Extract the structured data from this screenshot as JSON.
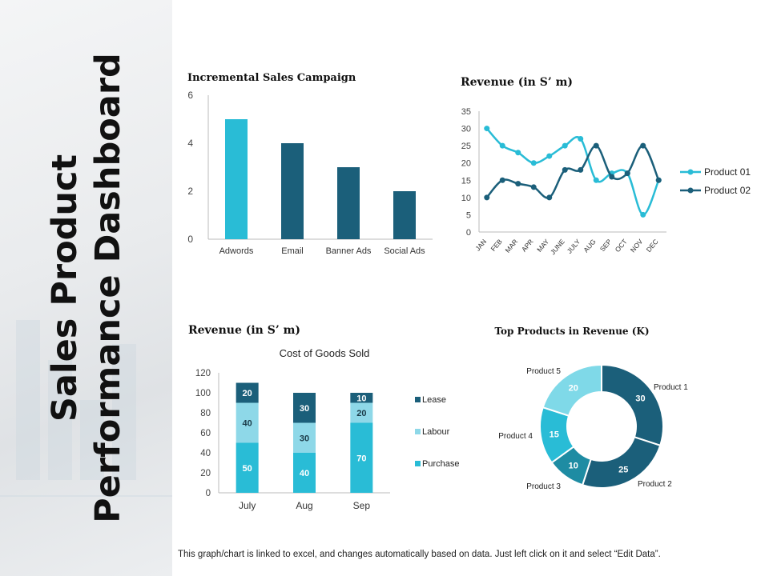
{
  "sidebar": {
    "title_line1": "Sales Product",
    "title_line2": "Performance Dashboard"
  },
  "footer": {
    "note": "This graph/chart is linked to excel, and changes automatically based on data. Just left click on it and select “Edit Data”."
  },
  "colors": {
    "light": "#29bcd6",
    "dark": "#1b5f7a",
    "pale": "#8ed8e8",
    "mid": "#1e8ca3",
    "palest": "#7fd9e8"
  },
  "chart_data": [
    {
      "id": "incremental",
      "type": "bar",
      "title": "Incremental Sales Campaign",
      "categories": [
        "Adwords",
        "Email",
        "Banner Ads",
        "Social Ads"
      ],
      "values": [
        5,
        4,
        3,
        2
      ],
      "ylim": [
        0,
        6
      ],
      "yticks": [
        0,
        2,
        4,
        6
      ],
      "xlabel": "",
      "ylabel": ""
    },
    {
      "id": "revenue_line",
      "type": "line",
      "title": "Revenue (in S’ m)",
      "categories": [
        "JAN",
        "FEB",
        "MAR",
        "APR",
        "MAY",
        "JUNE",
        "JULY",
        "AUG",
        "SEP",
        "OCT",
        "NOV",
        "DEC"
      ],
      "series": [
        {
          "name": "Product 01",
          "values": [
            30,
            25,
            23,
            20,
            22,
            25,
            27,
            15,
            17,
            17,
            5,
            15
          ]
        },
        {
          "name": "Product 02",
          "values": [
            10,
            15,
            14,
            13,
            10,
            18,
            18,
            25,
            16,
            17,
            25,
            15
          ]
        }
      ],
      "ylim": [
        0,
        35
      ],
      "yticks": [
        0,
        5,
        10,
        15,
        20,
        25,
        30,
        35
      ],
      "legend": "right"
    },
    {
      "id": "cogs",
      "type": "bar",
      "stacked": true,
      "title": "Revenue (in S’ m)",
      "subtitle": "Cost of Goods Sold",
      "categories": [
        "July",
        "Aug",
        "Sep"
      ],
      "series": [
        {
          "name": "Purchase",
          "values": [
            50,
            40,
            70
          ]
        },
        {
          "name": "Labour",
          "values": [
            40,
            30,
            20
          ]
        },
        {
          "name": "Lease",
          "values": [
            20,
            30,
            10
          ]
        }
      ],
      "legend_order": [
        "Lease",
        "Labour",
        "Purchase"
      ],
      "ylim": [
        0,
        120
      ],
      "yticks": [
        0,
        20,
        40,
        60,
        80,
        100,
        120
      ],
      "legend": "right"
    },
    {
      "id": "top_products",
      "type": "pie",
      "donut": true,
      "title": "Top Products in Revenue (K)",
      "labels": [
        "Product 1",
        "Product 2",
        "Product 3",
        "Product 4",
        "Product 5"
      ],
      "values": [
        30,
        25,
        10,
        15,
        20
      ]
    }
  ]
}
